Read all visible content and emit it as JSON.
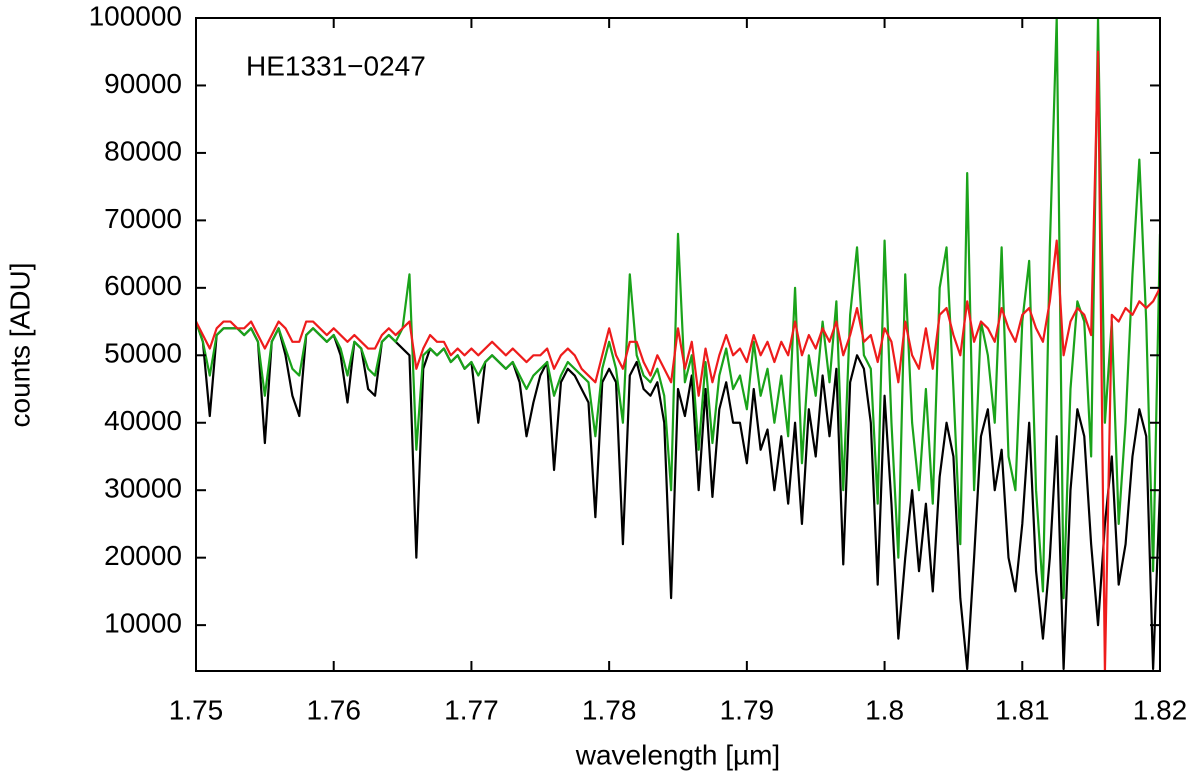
{
  "chart_data": {
    "type": "line",
    "annotation": "HE1331−0247",
    "xlabel": "wavelength [µm]",
    "ylabel": "counts [ADU]",
    "xlim": [
      1.75,
      1.82
    ],
    "xticks": [
      1.75,
      1.76,
      1.77,
      1.78,
      1.79,
      1.8,
      1.81,
      1.82
    ],
    "ylim": [
      3200,
      100000
    ],
    "yticks": [
      10000,
      20000,
      30000,
      40000,
      50000,
      60000,
      70000,
      80000,
      90000,
      100000
    ],
    "x": [
      1.75,
      1.7505,
      1.751,
      1.7515,
      1.752,
      1.7525,
      1.753,
      1.7535,
      1.754,
      1.7545,
      1.755,
      1.7555,
      1.756,
      1.7565,
      1.757,
      1.7575,
      1.758,
      1.7585,
      1.759,
      1.7595,
      1.76,
      1.7605,
      1.761,
      1.7615,
      1.762,
      1.7625,
      1.763,
      1.7635,
      1.764,
      1.7645,
      1.765,
      1.7655,
      1.766,
      1.7665,
      1.767,
      1.7675,
      1.768,
      1.7685,
      1.769,
      1.7695,
      1.77,
      1.7705,
      1.771,
      1.7715,
      1.772,
      1.7725,
      1.773,
      1.7735,
      1.774,
      1.7745,
      1.775,
      1.7755,
      1.776,
      1.7765,
      1.777,
      1.7775,
      1.778,
      1.7785,
      1.779,
      1.7795,
      1.78,
      1.7805,
      1.781,
      1.7815,
      1.782,
      1.7825,
      1.783,
      1.7835,
      1.784,
      1.7845,
      1.785,
      1.7855,
      1.786,
      1.7865,
      1.787,
      1.7875,
      1.788,
      1.7885,
      1.789,
      1.7895,
      1.79,
      1.7905,
      1.791,
      1.7915,
      1.792,
      1.7925,
      1.793,
      1.7935,
      1.794,
      1.7945,
      1.795,
      1.7955,
      1.796,
      1.7965,
      1.797,
      1.7975,
      1.798,
      1.7985,
      1.799,
      1.7995,
      1.8,
      1.8005,
      1.801,
      1.8015,
      1.802,
      1.8025,
      1.803,
      1.8035,
      1.804,
      1.8045,
      1.805,
      1.8055,
      1.806,
      1.8065,
      1.807,
      1.8075,
      1.808,
      1.8085,
      1.809,
      1.8095,
      1.81,
      1.8105,
      1.811,
      1.8115,
      1.812,
      1.8125,
      1.813,
      1.8135,
      1.814,
      1.8145,
      1.815,
      1.8155,
      1.816,
      1.8165,
      1.817,
      1.8175,
      1.818,
      1.8185,
      1.819,
      1.8195,
      1.82
    ],
    "series": [
      {
        "color": "#000000",
        "values": [
          55000,
          52000,
          41000,
          53000,
          54000,
          54000,
          54000,
          53000,
          54000,
          52000,
          37000,
          52000,
          54000,
          50000,
          44000,
          41000,
          53000,
          54000,
          53000,
          52000,
          53000,
          50000,
          43000,
          52000,
          51000,
          45000,
          44000,
          52000,
          53000,
          52000,
          51000,
          50000,
          20000,
          48000,
          51000,
          50000,
          51000,
          49000,
          50000,
          48000,
          49000,
          40000,
          49000,
          50000,
          49000,
          48000,
          49000,
          46000,
          38000,
          43000,
          47000,
          49000,
          33000,
          46000,
          48000,
          47000,
          45000,
          43000,
          26000,
          46000,
          48000,
          46000,
          22000,
          47000,
          49000,
          45000,
          44000,
          46000,
          40000,
          14000,
          45000,
          41000,
          47000,
          30000,
          45000,
          29000,
          42000,
          46000,
          40000,
          40000,
          34000,
          45000,
          36000,
          39000,
          30000,
          38000,
          28000,
          40000,
          25000,
          42000,
          35000,
          47000,
          38000,
          48000,
          19000,
          46000,
          50000,
          48000,
          40000,
          16000,
          44000,
          28000,
          8000,
          20000,
          30000,
          18000,
          28000,
          15000,
          32000,
          40000,
          35000,
          14000,
          3500,
          20000,
          38000,
          42000,
          30000,
          36000,
          20000,
          15000,
          25000,
          40000,
          18000,
          8000,
          20000,
          38000,
          3500,
          30000,
          42000,
          38000,
          22000,
          10000,
          25000,
          35000,
          16000,
          22000,
          35000,
          42000,
          38000,
          3500,
          30000
        ]
      },
      {
        "color": "#1aa31a",
        "values": [
          55000,
          52000,
          47000,
          53000,
          54000,
          54000,
          54000,
          53000,
          54000,
          52000,
          44000,
          52000,
          54000,
          51000,
          48000,
          47000,
          53000,
          54000,
          53000,
          52000,
          53000,
          51000,
          47000,
          52000,
          51000,
          48000,
          47000,
          52000,
          53000,
          52000,
          54000,
          62000,
          36000,
          50000,
          51000,
          50000,
          51000,
          49000,
          50000,
          48000,
          49000,
          47000,
          49000,
          50000,
          49000,
          48000,
          49000,
          47000,
          45000,
          47000,
          48000,
          49000,
          44000,
          47000,
          49000,
          48000,
          47000,
          46000,
          38000,
          48000,
          52000,
          48000,
          40000,
          62000,
          50000,
          47000,
          46000,
          48000,
          44000,
          30000,
          68000,
          46000,
          50000,
          36000,
          49000,
          37000,
          47000,
          51000,
          45000,
          47000,
          42000,
          52000,
          44000,
          48000,
          40000,
          47000,
          38000,
          60000,
          34000,
          50000,
          44000,
          55000,
          46000,
          58000,
          30000,
          56000,
          66000,
          50000,
          48000,
          28000,
          67000,
          40000,
          20000,
          62000,
          40000,
          30000,
          45000,
          28000,
          60000,
          66000,
          45000,
          22000,
          77000,
          30000,
          55000,
          50000,
          40000,
          66000,
          35000,
          30000,
          55000,
          64000,
          30000,
          15000,
          66000,
          100000,
          14000,
          45000,
          58000,
          55000,
          35000,
          100000,
          40000,
          55000,
          25000,
          40000,
          62000,
          79000,
          55000,
          18000,
          68000
        ]
      },
      {
        "color": "#ee1c1c",
        "values": [
          55000,
          53000,
          51000,
          54000,
          55000,
          55000,
          54000,
          54000,
          55000,
          53000,
          51000,
          53000,
          55000,
          54000,
          52000,
          52000,
          55000,
          55000,
          54000,
          53000,
          54000,
          53000,
          52000,
          53000,
          52000,
          51000,
          51000,
          53000,
          54000,
          53000,
          54000,
          55000,
          48000,
          51000,
          53000,
          52000,
          52000,
          50000,
          51000,
          50000,
          51000,
          50000,
          51000,
          52000,
          51000,
          50000,
          51000,
          50000,
          49000,
          50000,
          50000,
          51000,
          48000,
          50000,
          51000,
          50000,
          48000,
          47000,
          46000,
          50000,
          54000,
          50000,
          48000,
          52000,
          52000,
          49000,
          47000,
          50000,
          48000,
          46000,
          54000,
          48000,
          52000,
          44000,
          51000,
          46000,
          50000,
          53000,
          50000,
          51000,
          49000,
          53000,
          50000,
          52000,
          49000,
          52000,
          50000,
          55000,
          50000,
          53000,
          51000,
          54000,
          52000,
          55000,
          50000,
          53000,
          57000,
          52000,
          53000,
          49000,
          54000,
          52000,
          46000,
          55000,
          50000,
          48000,
          54000,
          48000,
          56000,
          57000,
          53000,
          50000,
          58000,
          52000,
          55000,
          54000,
          52000,
          57000,
          54000,
          52000,
          56000,
          57000,
          54000,
          52000,
          58000,
          67000,
          50000,
          55000,
          57000,
          56000,
          53000,
          95000,
          3000,
          56000,
          55000,
          57000,
          56000,
          58000,
          57000,
          58000,
          60000
        ]
      }
    ]
  }
}
